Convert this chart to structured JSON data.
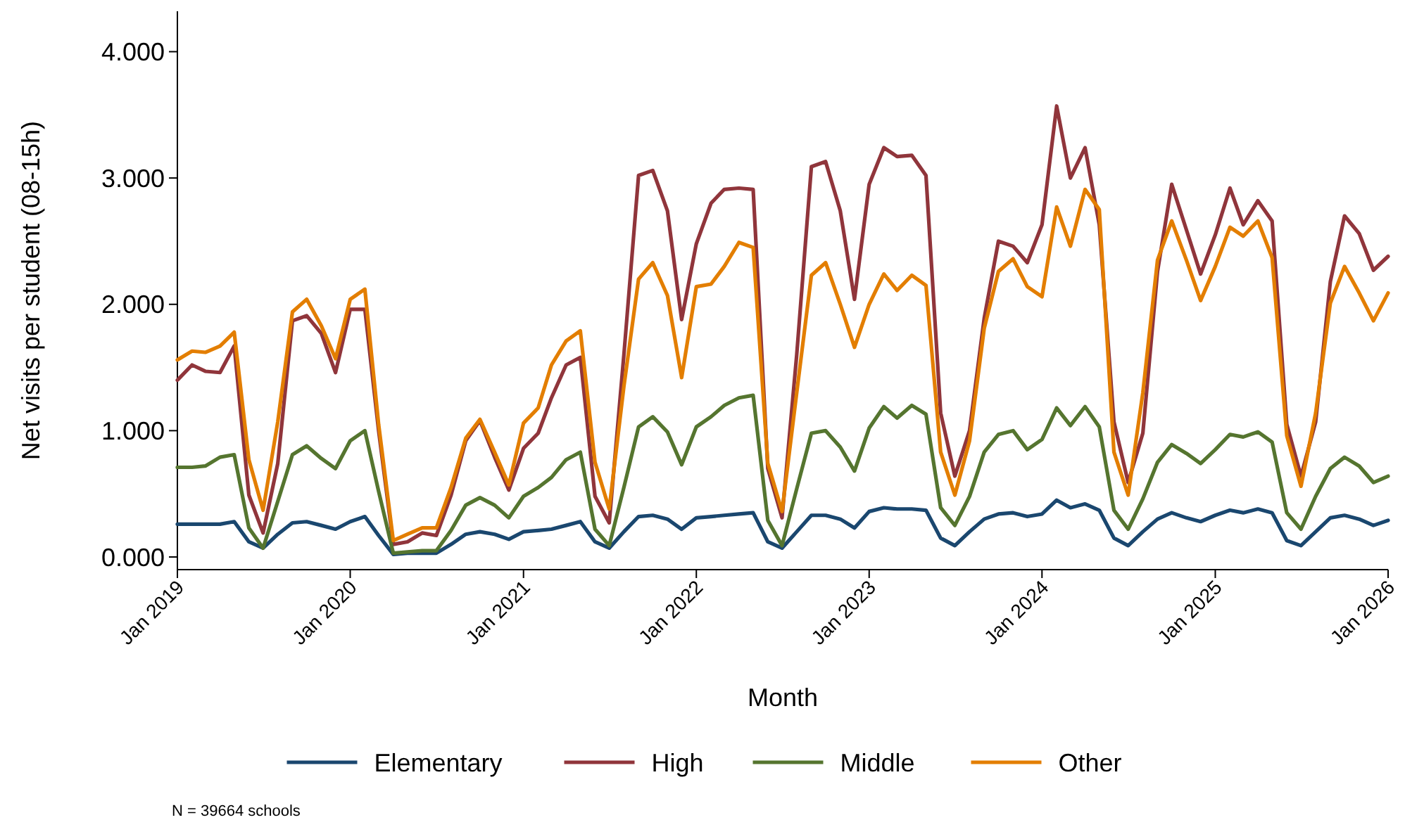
{
  "chart_data": {
    "type": "line",
    "ylabel": "Net visits per student (08-15h)",
    "xlabel": "Month",
    "annotations": [
      "N = 39664 schools"
    ],
    "x": [
      "2019-01",
      "2019-02",
      "2019-03",
      "2019-04",
      "2019-05",
      "2019-06",
      "2019-07",
      "2019-08",
      "2019-09",
      "2019-10",
      "2019-11",
      "2019-12",
      "2020-01",
      "2020-02",
      "2020-03",
      "2020-04",
      "2020-05",
      "2020-06",
      "2020-07",
      "2020-08",
      "2020-09",
      "2020-10",
      "2020-11",
      "2020-12",
      "2021-01",
      "2021-02",
      "2021-03",
      "2021-04",
      "2021-05",
      "2021-06",
      "2021-07",
      "2021-08",
      "2021-09",
      "2021-10",
      "2021-11",
      "2021-12",
      "2022-01",
      "2022-02",
      "2022-03",
      "2022-04",
      "2022-05",
      "2022-06",
      "2022-07",
      "2022-08",
      "2022-09",
      "2022-10",
      "2022-11",
      "2022-12",
      "2023-01",
      "2023-02",
      "2023-03",
      "2023-04",
      "2023-05",
      "2023-06",
      "2023-07",
      "2023-08",
      "2023-09",
      "2023-10",
      "2023-11",
      "2023-12",
      "2024-01",
      "2024-02",
      "2024-03",
      "2024-04",
      "2024-05",
      "2024-06",
      "2024-07",
      "2024-08",
      "2024-09",
      "2024-10",
      "2024-11",
      "2024-12",
      "2025-01",
      "2025-02",
      "2025-03",
      "2025-04",
      "2025-05",
      "2025-06",
      "2025-07",
      "2025-08",
      "2025-09",
      "2025-10",
      "2025-11",
      "2025-12",
      "2026-01"
    ],
    "series": [
      {
        "name": "Elementary",
        "color": "#1a476f",
        "values": [
          0.26,
          0.26,
          0.26,
          0.26,
          0.28,
          0.12,
          0.07,
          0.18,
          0.27,
          0.28,
          0.25,
          0.22,
          0.28,
          0.32,
          0.17,
          0.02,
          0.03,
          0.03,
          0.03,
          0.1,
          0.18,
          0.2,
          0.18,
          0.14,
          0.2,
          0.21,
          0.22,
          0.25,
          0.28,
          0.12,
          0.07,
          0.2,
          0.32,
          0.33,
          0.3,
          0.22,
          0.31,
          0.32,
          0.33,
          0.34,
          0.35,
          0.12,
          0.07,
          0.2,
          0.33,
          0.33,
          0.3,
          0.23,
          0.36,
          0.39,
          0.38,
          0.38,
          0.37,
          0.15,
          0.09,
          0.2,
          0.3,
          0.34,
          0.35,
          0.32,
          0.34,
          0.45,
          0.39,
          0.42,
          0.37,
          0.15,
          0.09,
          0.2,
          0.3,
          0.35,
          0.31,
          0.28,
          0.33,
          0.37,
          0.35,
          0.38,
          0.35,
          0.13,
          0.09,
          0.2,
          0.31,
          0.33,
          0.3,
          0.25,
          0.29
        ]
      },
      {
        "name": "High",
        "color": "#90353b",
        "values": [
          1.4,
          1.52,
          1.47,
          1.46,
          1.67,
          0.49,
          0.19,
          0.74,
          1.87,
          1.91,
          1.77,
          1.46,
          1.96,
          1.96,
          1.0,
          0.1,
          0.12,
          0.19,
          0.17,
          0.49,
          0.92,
          1.08,
          0.79,
          0.53,
          0.86,
          0.98,
          1.26,
          1.52,
          1.58,
          0.48,
          0.27,
          1.6,
          3.02,
          3.06,
          2.74,
          1.88,
          2.48,
          2.8,
          2.91,
          2.92,
          2.91,
          0.7,
          0.31,
          1.6,
          3.09,
          3.13,
          2.74,
          2.04,
          2.95,
          3.24,
          3.17,
          3.18,
          3.02,
          1.14,
          0.64,
          1.0,
          1.89,
          2.5,
          2.46,
          2.33,
          2.63,
          3.57,
          3.0,
          3.24,
          2.63,
          1.07,
          0.59,
          0.98,
          2.26,
          2.95,
          2.59,
          2.24,
          2.55,
          2.92,
          2.63,
          2.82,
          2.66,
          1.05,
          0.64,
          1.07,
          2.18,
          2.7,
          2.56,
          2.27,
          2.38
        ]
      },
      {
        "name": "Middle",
        "color": "#55752f",
        "values": [
          0.71,
          0.71,
          0.72,
          0.79,
          0.81,
          0.23,
          0.07,
          0.44,
          0.81,
          0.88,
          0.78,
          0.7,
          0.92,
          1.0,
          0.52,
          0.03,
          0.04,
          0.05,
          0.05,
          0.21,
          0.41,
          0.47,
          0.41,
          0.31,
          0.48,
          0.55,
          0.63,
          0.77,
          0.83,
          0.22,
          0.09,
          0.55,
          1.03,
          1.11,
          0.99,
          0.73,
          1.03,
          1.11,
          1.2,
          1.26,
          1.28,
          0.29,
          0.09,
          0.54,
          0.98,
          1.0,
          0.87,
          0.68,
          1.02,
          1.19,
          1.1,
          1.2,
          1.13,
          0.39,
          0.25,
          0.48,
          0.83,
          0.97,
          1.0,
          0.85,
          0.93,
          1.18,
          1.04,
          1.19,
          1.03,
          0.37,
          0.22,
          0.46,
          0.75,
          0.89,
          0.82,
          0.74,
          0.85,
          0.97,
          0.95,
          0.99,
          0.91,
          0.35,
          0.22,
          0.48,
          0.7,
          0.79,
          0.72,
          0.59,
          0.64
        ]
      },
      {
        "name": "Other",
        "color": "#e37e00",
        "values": [
          1.56,
          1.63,
          1.62,
          1.67,
          1.78,
          0.77,
          0.37,
          1.07,
          1.94,
          2.04,
          1.83,
          1.57,
          2.04,
          2.12,
          1.05,
          0.13,
          0.18,
          0.23,
          0.23,
          0.55,
          0.94,
          1.09,
          0.83,
          0.57,
          1.06,
          1.18,
          1.52,
          1.71,
          1.79,
          0.75,
          0.38,
          1.35,
          2.2,
          2.33,
          2.07,
          1.42,
          2.14,
          2.16,
          2.3,
          2.49,
          2.45,
          0.74,
          0.36,
          1.3,
          2.23,
          2.33,
          2.0,
          1.66,
          2.0,
          2.24,
          2.11,
          2.23,
          2.15,
          0.83,
          0.49,
          0.92,
          1.81,
          2.26,
          2.36,
          2.14,
          2.06,
          2.77,
          2.46,
          2.91,
          2.75,
          0.83,
          0.49,
          1.3,
          2.35,
          2.66,
          2.35,
          2.03,
          2.3,
          2.61,
          2.54,
          2.66,
          2.37,
          0.96,
          0.56,
          1.14,
          2.01,
          2.3,
          2.09,
          1.87,
          2.09
        ]
      }
    ],
    "xlim": [
      "2019-01",
      "2026-01"
    ],
    "xticks": [
      {
        "value": "2019-01",
        "label": "Jan 2019"
      },
      {
        "value": "2020-01",
        "label": "Jan 2020"
      },
      {
        "value": "2021-01",
        "label": "Jan 2021"
      },
      {
        "value": "2022-01",
        "label": "Jan 2022"
      },
      {
        "value": "2023-01",
        "label": "Jan 2023"
      },
      {
        "value": "2024-01",
        "label": "Jan 2024"
      },
      {
        "value": "2025-01",
        "label": "Jan 2025"
      },
      {
        "value": "2026-01",
        "label": "Jan 2026"
      }
    ],
    "ylim": [
      -0.1,
      4.32
    ],
    "yticks": [
      {
        "value": 0,
        "label": "0.000"
      },
      {
        "value": 1,
        "label": "1.000"
      },
      {
        "value": 2,
        "label": "2.000"
      },
      {
        "value": 3,
        "label": "3.000"
      },
      {
        "value": 4,
        "label": "4.000"
      }
    ],
    "grid": false,
    "legend": "bottom",
    "marker": "none",
    "line_style": "solid"
  }
}
